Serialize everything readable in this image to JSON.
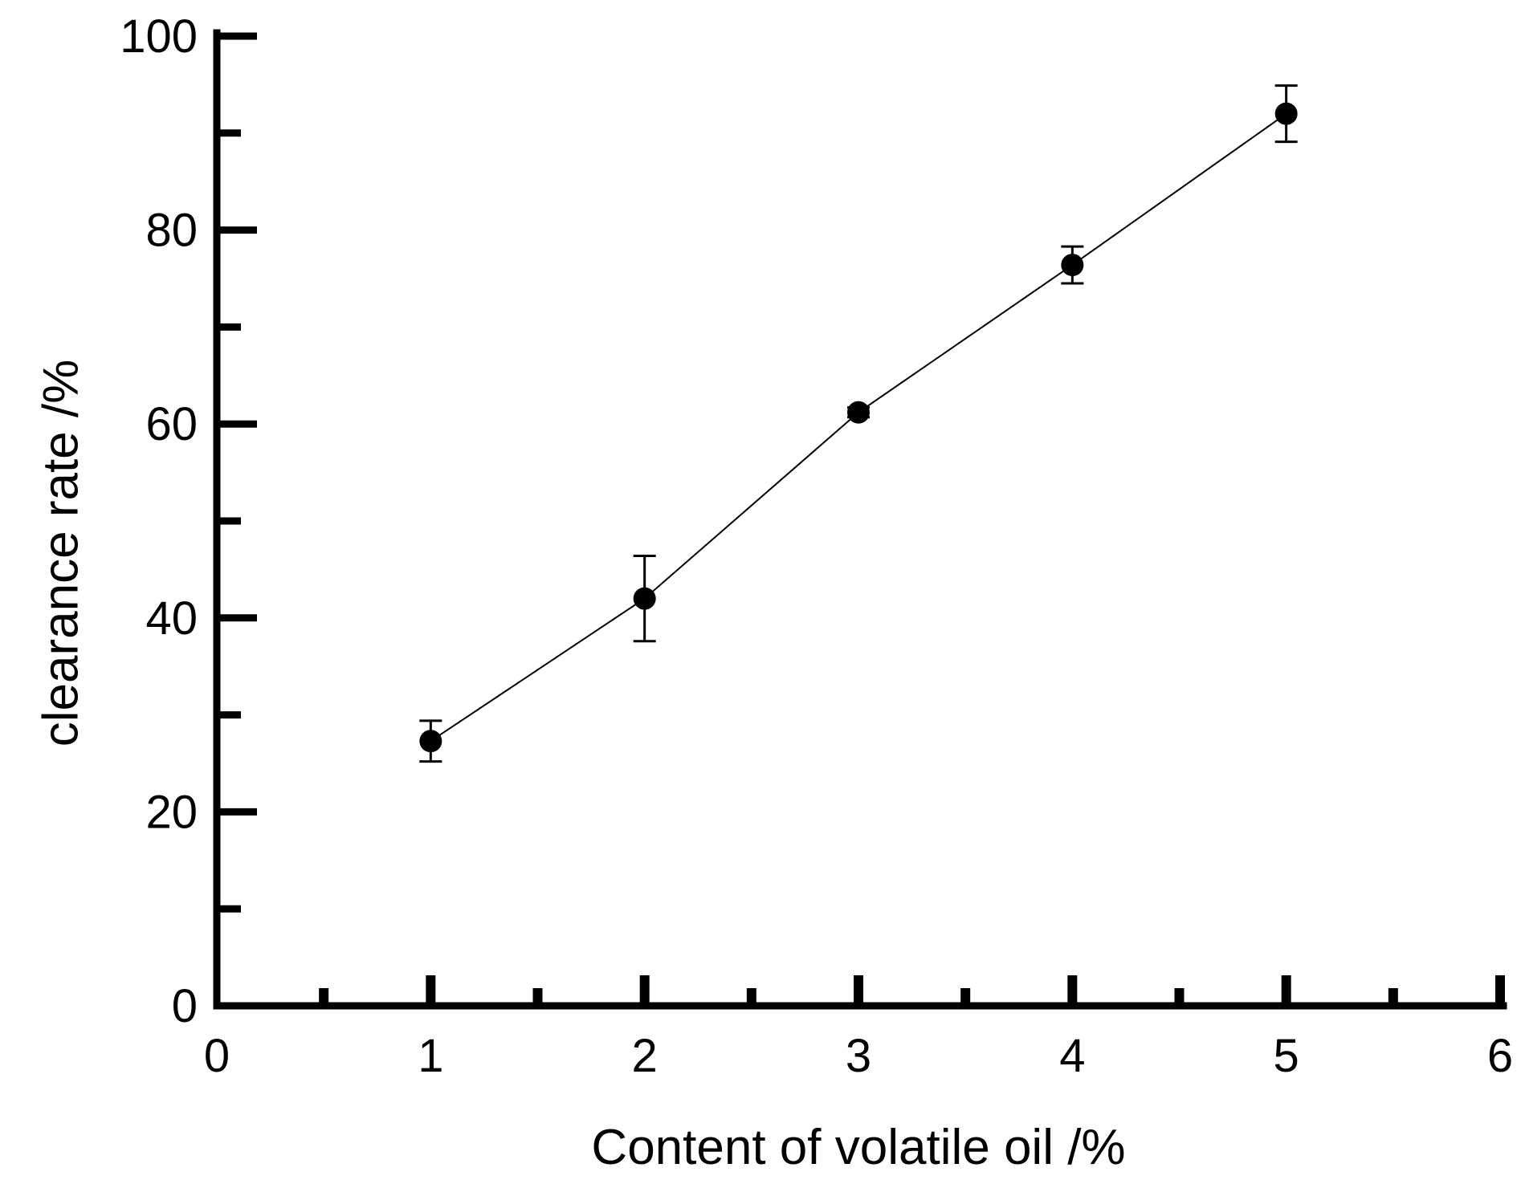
{
  "chart_data": {
    "type": "scatter",
    "title": "",
    "xlabel": "Content of volatile oil /%",
    "ylabel": "clearance rate /%",
    "xlim": [
      0,
      6
    ],
    "ylim": [
      0,
      100
    ],
    "x_major_ticks": [
      0,
      1,
      2,
      3,
      4,
      5,
      6
    ],
    "x_major_tick_labels": [
      "0",
      "1",
      "2",
      "3",
      "4",
      "5",
      "6"
    ],
    "x_minor_ticks": [
      0.5,
      1.5,
      2.5,
      3.5,
      4.5,
      5.5
    ],
    "y_major_ticks": [
      0,
      20,
      40,
      60,
      80,
      100
    ],
    "y_major_tick_labels": [
      "0",
      "20",
      "40",
      "60",
      "80",
      "100"
    ],
    "y_minor_ticks": [
      10,
      30,
      50,
      70,
      90
    ],
    "grid": false,
    "legend": "none",
    "connected": true,
    "marker_color": "#000000",
    "line_color": "#000000",
    "series": [
      {
        "x": [
          1,
          2,
          3,
          4,
          5
        ],
        "y": [
          27.3,
          42.0,
          61.2,
          76.4,
          92.0
        ],
        "error": [
          2.1,
          4.4,
          0.5,
          1.9,
          2.9
        ]
      }
    ]
  }
}
